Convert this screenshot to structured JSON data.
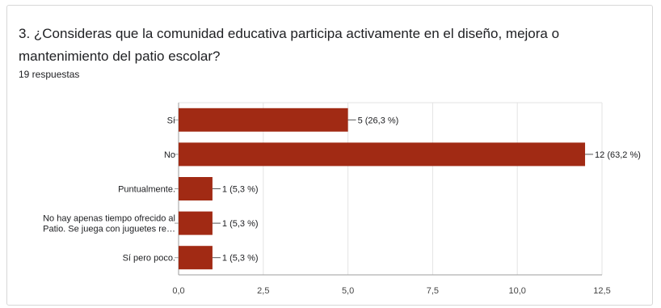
{
  "question": {
    "title": "3. ¿Consideras que la comunidad educativa participa activamente en el diseño, mejora o mantenimiento del patio escolar?",
    "responses": "19 respuestas"
  },
  "colors": {
    "bar": "#a12a14",
    "grid": "#e3e3e3",
    "axis": "#9e9e9e",
    "text": "#202124"
  },
  "chart_data": {
    "type": "bar",
    "orientation": "horizontal",
    "categories": [
      [
        "Sí"
      ],
      [
        "No"
      ],
      [
        "Puntualmente."
      ],
      [
        "No hay apenas tiempo ofrecido al",
        "Patio. Se juega con juguetes re…"
      ],
      [
        "Sí pero poco."
      ]
    ],
    "values": [
      5,
      12,
      1,
      1,
      1
    ],
    "data_labels": [
      "5 (26,3 %)",
      "12 (63,2 %)",
      "1 (5,3 %)",
      "1 (5,3 %)",
      "1 (5,3 %)"
    ],
    "xlim": [
      0,
      12.5
    ],
    "xticks": [
      0,
      2.5,
      5,
      7.5,
      10,
      12.5
    ],
    "xtick_labels": [
      "0,0",
      "2,5",
      "5,0",
      "7,5",
      "10,0",
      "12,5"
    ],
    "grid": true,
    "legend": "none"
  }
}
